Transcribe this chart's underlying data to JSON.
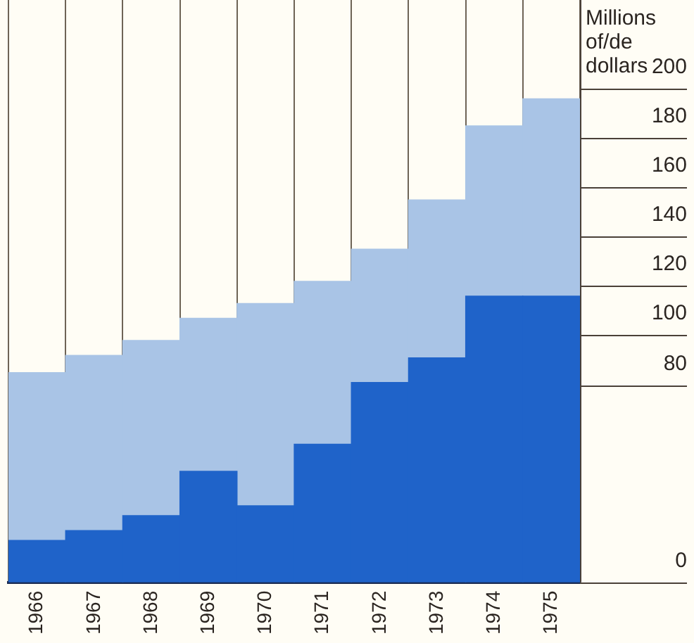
{
  "chart_data": {
    "type": "bar",
    "stacked": true,
    "ylabel": "Millions of/de dollars",
    "categories": [
      "1966",
      "1967",
      "1968",
      "1969",
      "1970",
      "1971",
      "1972",
      "1973",
      "1974",
      "1975"
    ],
    "series": [
      {
        "color": "#1f63c9",
        "values": [
          17,
          21,
          27,
          45,
          31,
          56,
          81,
          91,
          116,
          116
        ]
      },
      {
        "color": "#a9c4e6",
        "values": [
          68,
          71,
          71,
          62,
          82,
          66,
          54,
          64,
          69,
          80
        ]
      }
    ],
    "ylim": [
      0,
      236
    ],
    "yticks": [
      0,
      80,
      100,
      120,
      140,
      160,
      180,
      200
    ],
    "grid": "x",
    "legend": false
  }
}
